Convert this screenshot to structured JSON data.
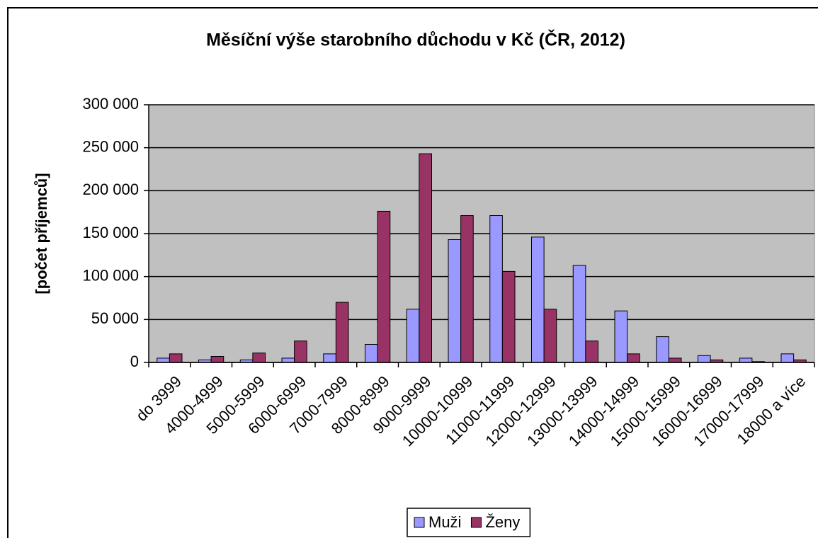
{
  "chart_data": {
    "type": "bar",
    "title": "Měsíční výše starobního důchodu v Kč (ČR, 2012)",
    "y_label": "[počet příjemců]",
    "categories": [
      "do 3999",
      "4000-4999",
      "5000-5999",
      "6000-6999",
      "7000-7999",
      "8000-8999",
      "9000-9999",
      "10000-10999",
      "11000-11999",
      "12000-12999",
      "13000-13999",
      "14000-14999",
      "15000-15999",
      "16000-16999",
      "17000-17999",
      "18000 a více"
    ],
    "series": [
      {
        "name": "Muži",
        "color": "#9999ff",
        "values": [
          5000,
          3000,
          3000,
          5000,
          10000,
          21000,
          62000,
          143000,
          171000,
          146000,
          113000,
          60000,
          30000,
          8000,
          5000,
          10000
        ]
      },
      {
        "name": "Ženy",
        "color": "#993366",
        "values": [
          10000,
          7000,
          11000,
          25000,
          70000,
          176000,
          243000,
          171000,
          106000,
          62000,
          25000,
          10000,
          5000,
          3000,
          1000,
          3000
        ]
      }
    ],
    "ylim": [
      0,
      300000
    ],
    "yticks": [
      0,
      {
        "value": 50000,
        "label": "50 000"
      },
      {
        "value": 100000,
        "label": "100 000"
      },
      {
        "value": 150000,
        "label": "150 000"
      },
      {
        "value": 200000,
        "label": "200 000"
      },
      {
        "value": 250000,
        "label": "250 000"
      },
      {
        "value": 300000,
        "label": "300 000"
      }
    ],
    "grid": true,
    "legend": "bottom"
  }
}
